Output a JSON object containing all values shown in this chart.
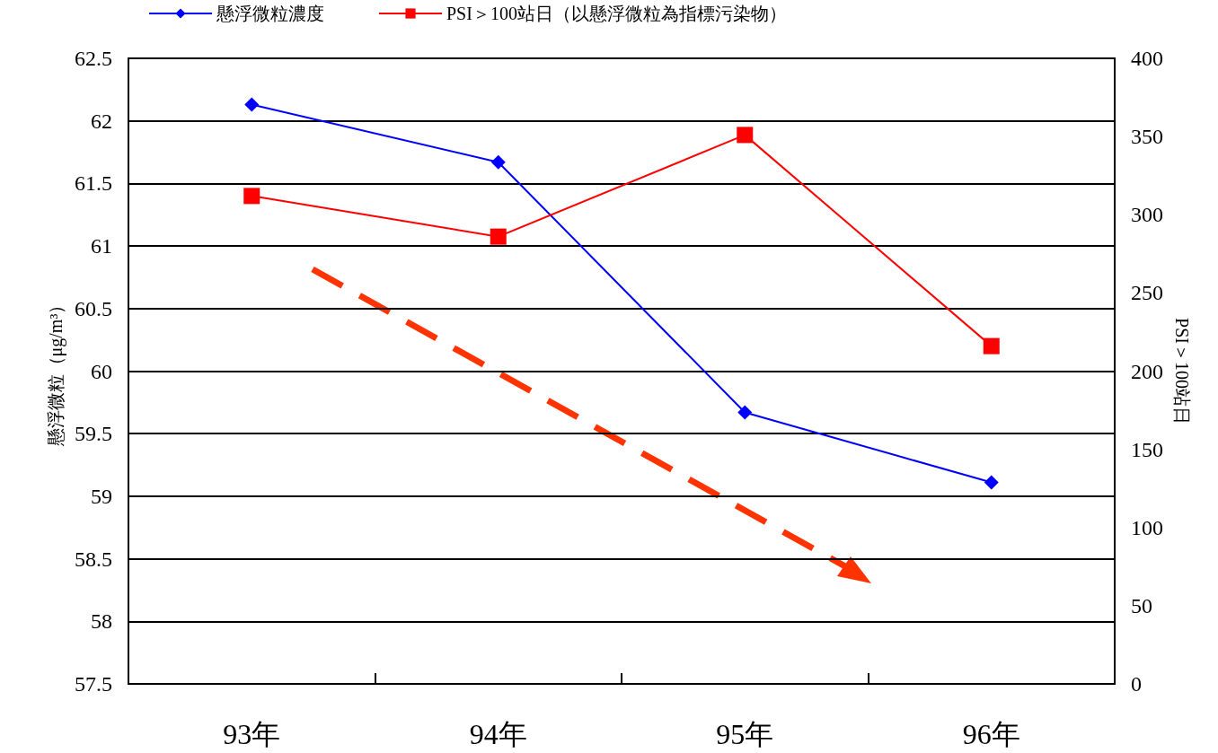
{
  "chart_data": {
    "type": "line",
    "categories": [
      "93年",
      "94年",
      "95年",
      "96年"
    ],
    "ylabel": "懸浮微粒（μg/m³）",
    "y2label": "PSI＞100站日",
    "ylim": [
      57.5,
      62.5
    ],
    "yticks": [
      57.5,
      58,
      58.5,
      59,
      59.5,
      60,
      60.5,
      61,
      61.5,
      62,
      62.5
    ],
    "y2lim": [
      0,
      400
    ],
    "y2ticks": [
      0,
      50,
      100,
      150,
      200,
      250,
      300,
      350,
      400
    ],
    "grid": "y",
    "legend": "top",
    "series": [
      {
        "name": "懸浮微粒濃度",
        "color": "#0000ff",
        "marker": "diamond",
        "values": [
          62.13,
          61.67,
          59.67,
          59.11
        ]
      },
      {
        "name": "PSI＞100站日（以懸浮微粒為指標污染物）",
        "color": "#ff0000",
        "marker": "square",
        "axis": "y2",
        "values": [
          312,
          286,
          351,
          216
        ]
      }
    ]
  }
}
